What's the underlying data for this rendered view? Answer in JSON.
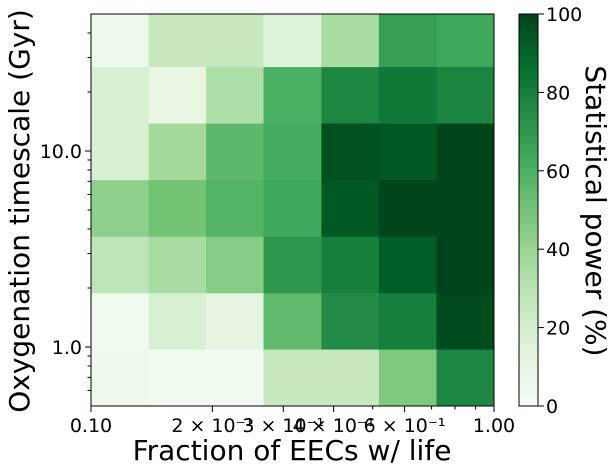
{
  "chart_data": {
    "type": "heatmap",
    "xlabel": "Fraction of EECs w/ life",
    "ylabel": "Oxygenation timescale (Gyr)",
    "colorbar_label": "Statistical power (%)",
    "colormap": "Greens",
    "color_min": "#f7fcf5",
    "color_max": "#00441b",
    "x_scale": "log",
    "y_scale": "log",
    "xlim": [
      0.1,
      1.0
    ],
    "ylim": [
      0.5,
      50
    ],
    "clim": [
      0,
      100
    ],
    "x_edges": [
      0.1,
      0.139,
      0.193,
      0.268,
      0.373,
      0.518,
      0.72,
      1.0
    ],
    "y_edges": [
      0.5,
      0.97,
      1.88,
      3.65,
      7.1,
      13.8,
      26.8,
      52
    ],
    "x_tick_labels": [
      {
        "value": 0.1,
        "label": "0.10"
      },
      {
        "value": 0.2,
        "label": "2 × 10⁻¹"
      },
      {
        "value": 0.3,
        "label": "3 × 10⁻¹"
      },
      {
        "value": 0.4,
        "label": "4 × 10⁻¹"
      },
      {
        "value": 0.6,
        "label": "6 × 10⁻¹"
      },
      {
        "value": 1.0,
        "label": "1.00"
      }
    ],
    "y_tick_labels": [
      {
        "value": 1.0,
        "label": "1.0"
      },
      {
        "value": 10.0,
        "label": "10.0"
      }
    ],
    "colorbar_ticks": [
      {
        "value": 0,
        "label": "0"
      },
      {
        "value": 20,
        "label": "20"
      },
      {
        "value": 40,
        "label": "40"
      },
      {
        "value": 60,
        "label": "60"
      },
      {
        "value": 80,
        "label": "80"
      },
      {
        "value": 100,
        "label": "100"
      }
    ],
    "values": [
      [
        6,
        25,
        25,
        15,
        35,
        67,
        64
      ],
      [
        18,
        10,
        33,
        60,
        77,
        82,
        78
      ],
      [
        18,
        37,
        56,
        62,
        96,
        94,
        100
      ],
      [
        43,
        50,
        58,
        63,
        94,
        100,
        100
      ],
      [
        28,
        35,
        45,
        70,
        80,
        92,
        100
      ],
      [
        5,
        18,
        12,
        55,
        75,
        80,
        98
      ],
      [
        6,
        4,
        4,
        25,
        25,
        47,
        77
      ]
    ]
  }
}
